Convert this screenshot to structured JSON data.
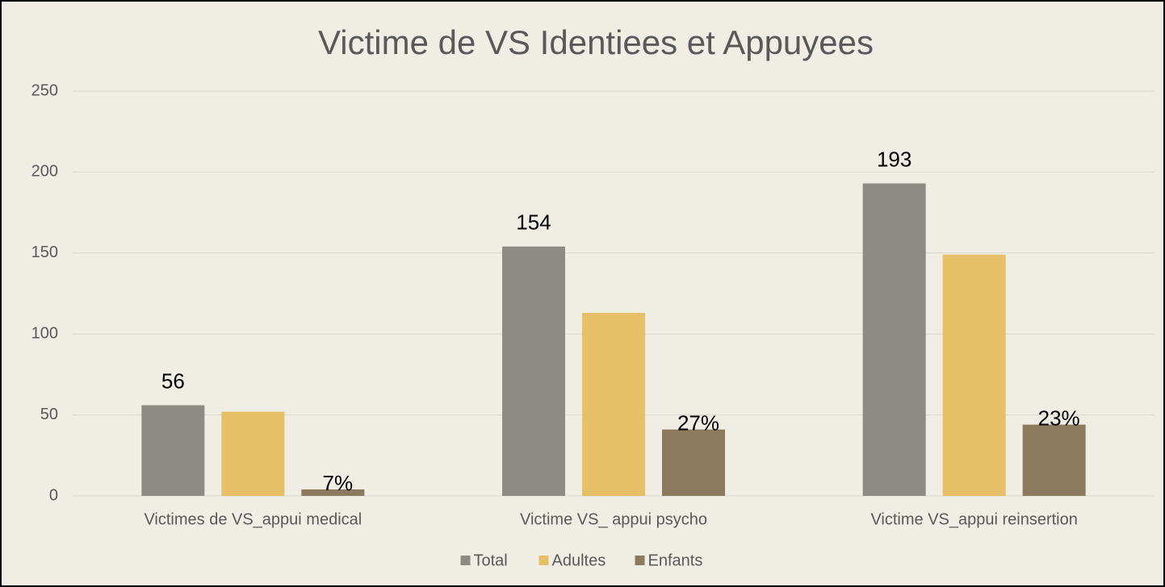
{
  "chart_data": {
    "type": "bar",
    "title": "Victime de VS Identiees et Appuyees",
    "categories": [
      "Victimes de VS_appui medical",
      "Victime VS_ appui psycho",
      "Victime VS_appui reinsertion"
    ],
    "series": [
      {
        "name": "Total",
        "color": "#8c8c84",
        "values": [
          56,
          154,
          193
        ]
      },
      {
        "name": "Adultes",
        "color": "#e6bf66",
        "values": [
          52,
          113,
          149
        ]
      },
      {
        "name": "Enfants",
        "color": "#8b7a5d",
        "values": [
          4,
          41,
          44
        ]
      }
    ],
    "annotations": [
      "7%",
      "27%",
      "23%"
    ],
    "ylim": [
      0,
      250
    ],
    "yticks": [
      0,
      50,
      100,
      150,
      200,
      250
    ],
    "grid": true,
    "legend": "bottom"
  }
}
